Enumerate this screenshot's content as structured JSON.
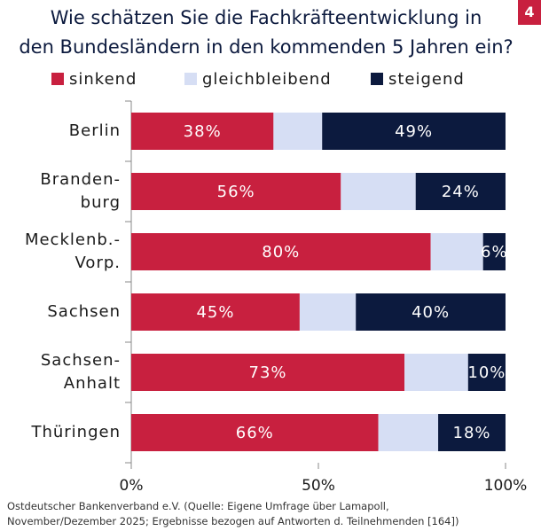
{
  "page_number": "4",
  "chart_data": {
    "type": "stacked-barh",
    "title": "Wie schätzen Sie die Fachkräfteentwicklung in\nden Bundesländern in den kommenden 5 Jahren ein?",
    "categories": [
      "Berlin",
      "Branden-\nburg",
      "Mecklenb.-\nVorp.",
      "Sachsen",
      "Sachsen-\nAnhalt",
      "Thüringen"
    ],
    "series": [
      {
        "name": "sinkend",
        "color": "#c8203f",
        "values": [
          38,
          56,
          80,
          45,
          73,
          66
        ],
        "value_labels": [
          "38%",
          "56%",
          "80%",
          "45%",
          "73%",
          "66%"
        ]
      },
      {
        "name": "gleichbleibend",
        "color": "#d6def4",
        "values": [
          13,
          20,
          14,
          15,
          17,
          16
        ]
      },
      {
        "name": "steigend",
        "color": "#0c1a3e",
        "values": [
          49,
          24,
          6,
          40,
          10,
          18
        ],
        "value_labels": [
          "49%",
          "24%",
          "6%",
          "40%",
          "10%",
          "18%"
        ]
      }
    ],
    "xlim": [
      0,
      100
    ],
    "xticks": [
      {
        "value": 0,
        "label": "0%"
      },
      {
        "value": 50,
        "label": "50%"
      },
      {
        "value": 100,
        "label": "100%"
      }
    ],
    "legend": "top",
    "source": "Ostdeutscher Bankenverband e.V. (Quelle: Eigene Umfrage über Lamapoll,\nNovember/Dezember 2025; Ergebnisse bezogen auf Antworten d. Teilnehmenden [164])"
  }
}
